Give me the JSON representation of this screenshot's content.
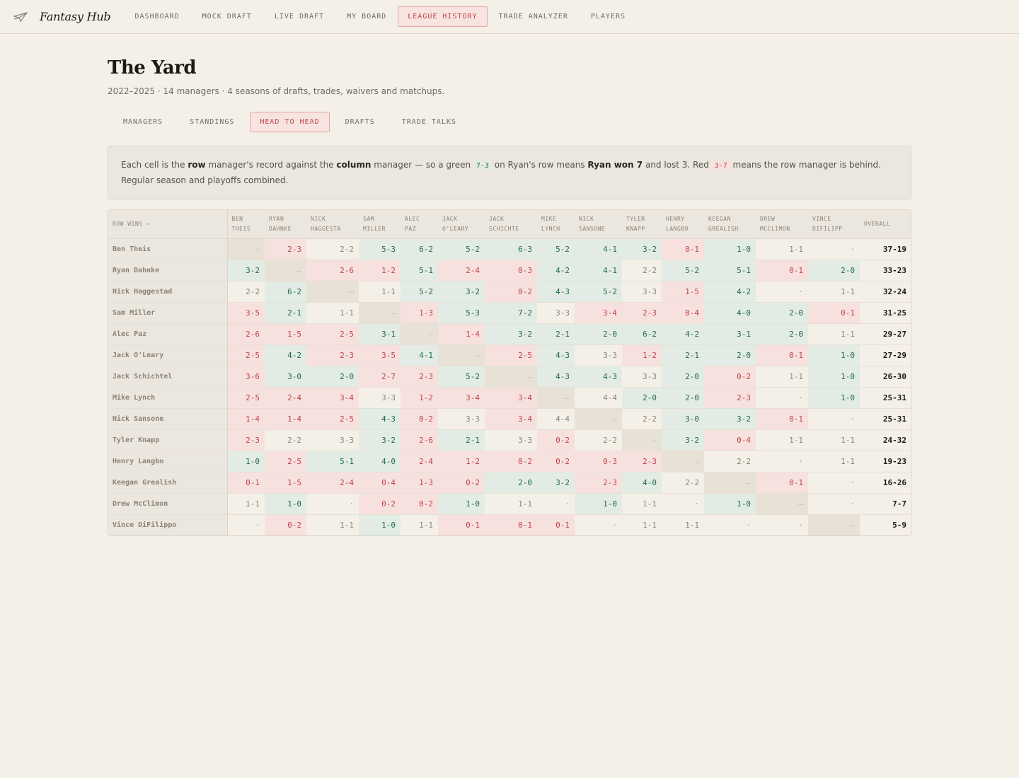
{
  "app": {
    "brand": "Fantasy Hub",
    "logo_icon": "paper-plane-icon"
  },
  "nav": [
    {
      "label": "DASHBOARD",
      "active": false
    },
    {
      "label": "MOCK DRAFT",
      "active": false
    },
    {
      "label": "LIVE DRAFT",
      "active": false
    },
    {
      "label": "MY BOARD",
      "active": false
    },
    {
      "label": "LEAGUE HISTORY",
      "active": true
    },
    {
      "label": "TRADE ANALYZER",
      "active": false
    },
    {
      "label": "PLAYERS",
      "active": false
    }
  ],
  "page": {
    "title": "The Yard",
    "subtitle": "2022–2025 · 14 managers · 4 seasons of drafts, trades, waivers and matchups."
  },
  "tabs": [
    {
      "label": "MANAGERS",
      "active": false
    },
    {
      "label": "STANDINGS",
      "active": false
    },
    {
      "label": "HEAD TO HEAD",
      "active": true
    },
    {
      "label": "DRAFTS",
      "active": false
    },
    {
      "label": "TRADE TALKS",
      "active": false
    }
  ],
  "note": {
    "t1": "Each cell is the ",
    "b1": "row",
    "t2": " manager's record against the ",
    "b2": "column",
    "t3": " manager — so a green ",
    "chip_green": "7-3",
    "t4": " on Ryan's row means ",
    "b3": "Ryan won 7",
    "t5": " and lost 3. Red ",
    "chip_red": "3-7",
    "t6": " means the row manager is behind. Regular season and playoffs combined."
  },
  "colors": {
    "win": "#236a4b",
    "loss": "#c0454a",
    "accent": "#c0454a"
  },
  "table": {
    "corner": "ROW WINS →",
    "overall_header": "OVERALL",
    "columns": [
      [
        "BEN",
        "THEIS"
      ],
      [
        "RYAN",
        "DAHNKE"
      ],
      [
        "NICK",
        "HAGGESTA"
      ],
      [
        "SAM",
        "MILLER"
      ],
      [
        "ALEC",
        "PAZ"
      ],
      [
        "JACK",
        "O'LEARY"
      ],
      [
        "JACK",
        "SCHICHTE"
      ],
      [
        "MIKE",
        "LYNCH"
      ],
      [
        "NICK",
        "SANSONE"
      ],
      [
        "TYLER",
        "KNAPP"
      ],
      [
        "HENRY",
        "LANGBO"
      ],
      [
        "KEEGAN",
        "GREALISH"
      ],
      [
        "DREW",
        "MCCLIMON"
      ],
      [
        "VINCE",
        "DIFILIPP"
      ]
    ],
    "rows": [
      {
        "name": "Ben Theis",
        "cells": [
          "—",
          "2-3",
          "2-2",
          "5-3",
          "6-2",
          "5-2",
          "6-3",
          "5-2",
          "4-1",
          "3-2",
          "0-1",
          "1-0",
          "1-1",
          "·"
        ],
        "overall": "37-19"
      },
      {
        "name": "Ryan Dahnke",
        "cells": [
          "3-2",
          "—",
          "2-6",
          "1-2",
          "5-1",
          "2-4",
          "0-3",
          "4-2",
          "4-1",
          "2-2",
          "5-2",
          "5-1",
          "0-1",
          "2-0"
        ],
        "overall": "33-23"
      },
      {
        "name": "Nick Haggestad",
        "cells": [
          "2-2",
          "6-2",
          "—",
          "1-1",
          "5-2",
          "3-2",
          "0-2",
          "4-3",
          "5-2",
          "3-3",
          "1-5",
          "4-2",
          "·",
          "1-1"
        ],
        "overall": "32-24"
      },
      {
        "name": "Sam Miller",
        "cells": [
          "3-5",
          "2-1",
          "1-1",
          "—",
          "1-3",
          "5-3",
          "7-2",
          "3-3",
          "3-4",
          "2-3",
          "0-4",
          "4-0",
          "2-0",
          "0-1"
        ],
        "overall": "31-25"
      },
      {
        "name": "Alec Paz",
        "cells": [
          "2-6",
          "1-5",
          "2-5",
          "3-1",
          "—",
          "1-4",
          "3-2",
          "2-1",
          "2-0",
          "6-2",
          "4-2",
          "3-1",
          "2-0",
          "1-1"
        ],
        "overall": "29-27"
      },
      {
        "name": "Jack O'Leary",
        "cells": [
          "2-5",
          "4-2",
          "2-3",
          "3-5",
          "4-1",
          "—",
          "2-5",
          "4-3",
          "3-3",
          "1-2",
          "2-1",
          "2-0",
          "0-1",
          "1-0"
        ],
        "overall": "27-29"
      },
      {
        "name": "Jack Schichtel",
        "cells": [
          "3-6",
          "3-0",
          "2-0",
          "2-7",
          "2-3",
          "5-2",
          "—",
          "4-3",
          "4-3",
          "3-3",
          "2-0",
          "0-2",
          "1-1",
          "1-0"
        ],
        "overall": "26-30"
      },
      {
        "name": "Mike Lynch",
        "cells": [
          "2-5",
          "2-4",
          "3-4",
          "3-3",
          "1-2",
          "3-4",
          "3-4",
          "—",
          "4-4",
          "2-0",
          "2-0",
          "2-3",
          "·",
          "1-0"
        ],
        "overall": "25-31"
      },
      {
        "name": "Nick Sansone",
        "cells": [
          "1-4",
          "1-4",
          "2-5",
          "4-3",
          "0-2",
          "3-3",
          "3-4",
          "4-4",
          "—",
          "2-2",
          "3-0",
          "3-2",
          "0-1",
          "·"
        ],
        "overall": "25-31"
      },
      {
        "name": "Tyler Knapp",
        "cells": [
          "2-3",
          "2-2",
          "3-3",
          "3-2",
          "2-6",
          "2-1",
          "3-3",
          "0-2",
          "2-2",
          "—",
          "3-2",
          "0-4",
          "1-1",
          "1-1"
        ],
        "overall": "24-32"
      },
      {
        "name": "Henry Langbo",
        "cells": [
          "1-0",
          "2-5",
          "5-1",
          "4-0",
          "2-4",
          "1-2",
          "0-2",
          "0-2",
          "0-3",
          "2-3",
          "—",
          "2-2",
          "·",
          "1-1"
        ],
        "overall": "19-23"
      },
      {
        "name": "Keegan Grealish",
        "cells": [
          "0-1",
          "1-5",
          "2-4",
          "0-4",
          "1-3",
          "0-2",
          "2-0",
          "3-2",
          "2-3",
          "4-0",
          "2-2",
          "—",
          "0-1",
          "·"
        ],
        "overall": "16-26"
      },
      {
        "name": "Drew McClimon",
        "cells": [
          "1-1",
          "1-0",
          "·",
          "0-2",
          "0-2",
          "1-0",
          "1-1",
          "·",
          "1-0",
          "1-1",
          "·",
          "1-0",
          "—",
          "·"
        ],
        "overall": "7-7"
      },
      {
        "name": "Vince DiFilippo",
        "cells": [
          "·",
          "0-2",
          "1-1",
          "1-0",
          "1-1",
          "0-1",
          "0-1",
          "0-1",
          "·",
          "1-1",
          "1-1",
          "·",
          "·",
          "—"
        ],
        "overall": "5-9"
      }
    ]
  }
}
